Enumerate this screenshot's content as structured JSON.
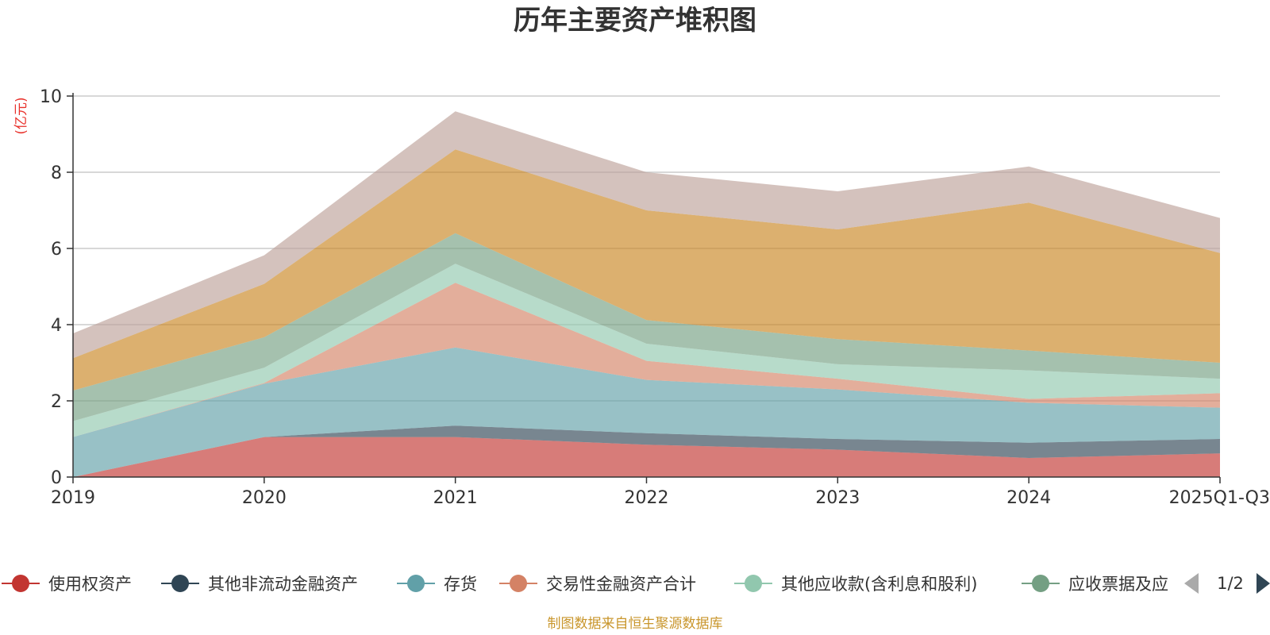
{
  "chart_data": {
    "type": "area",
    "stacked": true,
    "title": "历年主要资产堆积图",
    "ylabel": "(亿元)",
    "ylim": [
      0,
      10
    ],
    "yticks": [
      0,
      2,
      4,
      6,
      8,
      10
    ],
    "categories": [
      "2019",
      "2020",
      "2021",
      "2022",
      "2023",
      "2024",
      "2025Q1-Q3"
    ],
    "series": [
      {
        "name": "使用权资产",
        "color": "#c23531",
        "values": [
          0.0,
          1.05,
          1.05,
          0.85,
          0.72,
          0.5,
          0.62
        ]
      },
      {
        "name": "其他非流动金融资产",
        "color": "#2f4554",
        "values": [
          0.0,
          0.0,
          0.3,
          0.3,
          0.28,
          0.4,
          0.38
        ]
      },
      {
        "name": "存货",
        "color": "#61a0a8",
        "values": [
          1.05,
          1.4,
          2.05,
          1.4,
          1.3,
          1.05,
          0.82
        ]
      },
      {
        "name": "交易性金融资产合计",
        "color": "#d48265",
        "values": [
          0.0,
          0.02,
          1.7,
          0.5,
          0.28,
          0.1,
          0.38
        ]
      },
      {
        "name": "其他应收款(含利息和股利)",
        "color": "#91c7ae",
        "values": [
          0.42,
          0.4,
          0.5,
          0.45,
          0.38,
          0.75,
          0.38
        ]
      },
      {
        "name": "应收票据及应收账款",
        "color": "#749f83",
        "values": [
          0.8,
          0.8,
          0.8,
          0.62,
          0.66,
          0.52,
          0.42
        ]
      },
      {
        "name": "",
        "color": "#ca8622",
        "values": [
          0.85,
          1.4,
          2.2,
          2.88,
          2.88,
          3.88,
          2.88
        ]
      },
      {
        "name": "",
        "color": "#bda29a",
        "values": [
          0.65,
          0.75,
          1.0,
          1.0,
          1.0,
          0.95,
          0.92
        ]
      }
    ]
  },
  "legend": {
    "items": [
      {
        "label": "使用权资产",
        "color": "#c23531"
      },
      {
        "label": "其他非流动金融资产",
        "color": "#2f4554"
      },
      {
        "label": "存货",
        "color": "#61a0a8"
      },
      {
        "label": "交易性金融资产合计",
        "color": "#d48265"
      },
      {
        "label": "其他应收款(含利息和股利)",
        "color": "#91c7ae"
      },
      {
        "label": "应收票据及应",
        "color": "#749f83"
      }
    ],
    "page": "1/2"
  },
  "source_text": "制图数据来自恒生聚源数据库"
}
